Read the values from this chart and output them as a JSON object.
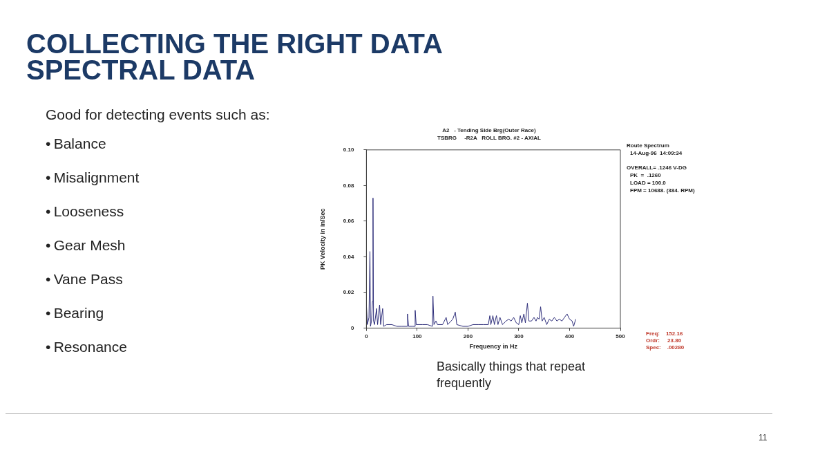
{
  "chart_data": {
    "type": "line",
    "title": "COLLECTING THE RIGHT DATA",
    "subtitle": "SPECTRAL DATA",
    "xlabel": "Frequency in Hz",
    "ylabel": "PK Velocity in In/Sec",
    "x": [
      0,
      2,
      5,
      7,
      8,
      10,
      12,
      13,
      14,
      16,
      20,
      22,
      26,
      28,
      32,
      34,
      40,
      50,
      60,
      70,
      80,
      81,
      83,
      90,
      95,
      96,
      98,
      110,
      120,
      130,
      131,
      133,
      137,
      140,
      150,
      157,
      160,
      170,
      175,
      178,
      190,
      200,
      210,
      220,
      230,
      240,
      243,
      245,
      249,
      252,
      256,
      259,
      263,
      268,
      275,
      280,
      285,
      290,
      295,
      300,
      303,
      306,
      310,
      313,
      317,
      320,
      325,
      330,
      334,
      337,
      340,
      343,
      346,
      350,
      355,
      360,
      365,
      370,
      375,
      380,
      385,
      390,
      395,
      400,
      405,
      408,
      412
    ],
    "series": [
      {
        "color": "#2e2e7a",
        "values": [
          0.013,
          0.002,
          0.006,
          0.043,
          0.001,
          0.004,
          0.015,
          0.073,
          0.004,
          0.002,
          0.011,
          0.002,
          0.013,
          0.002,
          0.011,
          0.001,
          0.002,
          0.002,
          0.001,
          0.001,
          0.001,
          0.008,
          0.001,
          0.001,
          0.001,
          0.01,
          0.002,
          0.002,
          0.002,
          0.001,
          0.018,
          0.002,
          0.004,
          0.002,
          0.002,
          0.006,
          0.002,
          0.005,
          0.009,
          0.002,
          0.001,
          0.001,
          0.002,
          0.002,
          0.002,
          0.002,
          0.007,
          0.002,
          0.007,
          0.002,
          0.007,
          0.002,
          0.006,
          0.002,
          0.004,
          0.005,
          0.004,
          0.006,
          0.003,
          0.002,
          0.007,
          0.003,
          0.008,
          0.003,
          0.014,
          0.004,
          0.004,
          0.006,
          0.004,
          0.006,
          0.005,
          0.012,
          0.004,
          0.006,
          0.002,
          0.005,
          0.004,
          0.006,
          0.004,
          0.005,
          0.004,
          0.006,
          0.008,
          0.005,
          0.004,
          0.001,
          0.005
        ]
      }
    ],
    "xlim": [
      0,
      500
    ],
    "xticks": [
      0,
      100,
      200,
      300,
      400,
      500
    ],
    "ylim": [
      0,
      0.1
    ],
    "yticks": [
      0,
      {
        "value": 0.02,
        "label": "0.02"
      },
      {
        "value": 0.04,
        "label": "0.04"
      },
      {
        "value": 0.06,
        "label": "0.06"
      },
      {
        "value": 0.08,
        "label": "0.08"
      },
      {
        "value": 0.1,
        "label": "0.10"
      }
    ],
    "grid": false,
    "legend": false,
    "marker": "none",
    "line_style": "solid",
    "annotations": [
      "Good for detecting events such as:",
      "•\tBalance",
      "•\tMisalignment",
      "•\tLooseness",
      "•\tGear Mesh",
      "•\tVane Pass",
      "•\tBearing",
      "•\tResonance",
      "A2   - Tending Side Brg(Outer Race)",
      "TSBRG     -R2A   ROLL BRG. #2 - AXIAL",
      "Route Spectrum",
      "14-Aug-96  14:09:34",
      "OVERALL= .1246 V-DG",
      "PK  =  .1260",
      "LOAD = 100.0",
      "FPM = 10688. (384. RPM)",
      "Freq:    152.16",
      "Ordr:     23.80",
      "Spec:    .00280",
      "Basically things that repeat frequently",
      "11"
    ]
  }
}
